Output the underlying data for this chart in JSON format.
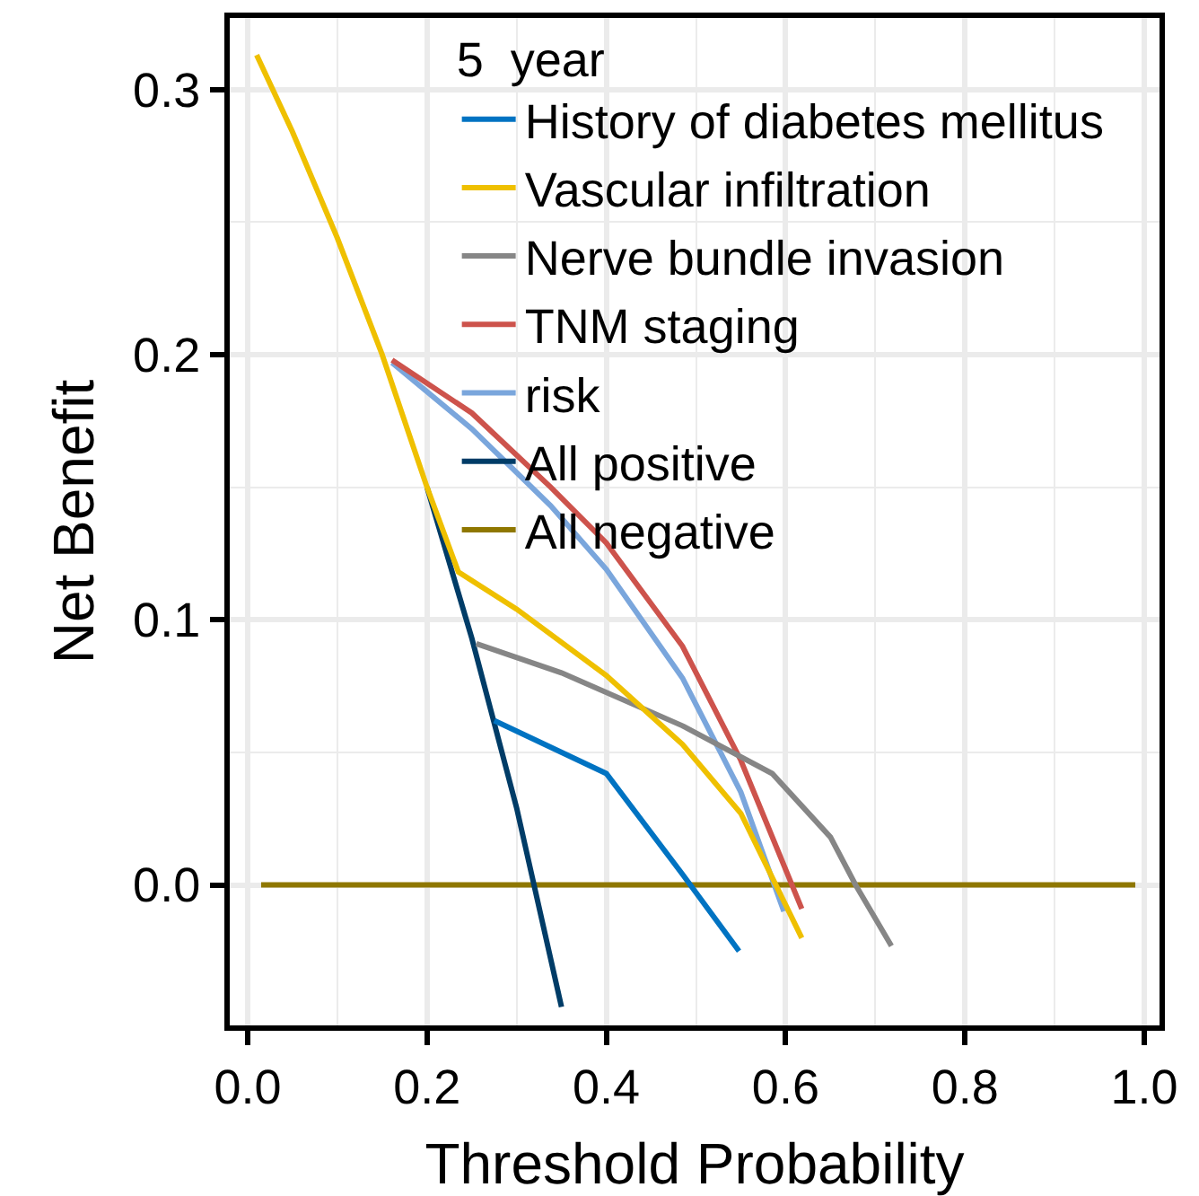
{
  "chart_data": {
    "type": "line",
    "xlabel": "Threshold Probability",
    "ylabel": "Net Benefit",
    "legend_title": "5  year",
    "xlim": [
      -0.02,
      1.017
    ],
    "ylim": [
      -0.053,
      0.327
    ],
    "xticks": [
      {
        "value": 0,
        "label": "0.0"
      },
      {
        "value": 0.2,
        "label": "0.2"
      },
      {
        "value": 0.4,
        "label": "0.4"
      },
      {
        "value": 0.6,
        "label": "0.6"
      },
      {
        "value": 0.8,
        "label": "0.8"
      },
      {
        "value": 1,
        "label": "1.0"
      }
    ],
    "yticks": [
      {
        "value": 0,
        "label": "0.0"
      },
      {
        "value": 0.1,
        "label": "0.1"
      },
      {
        "value": 0.2,
        "label": "0.2"
      },
      {
        "value": 0.3,
        "label": "0.3"
      }
    ],
    "grid": true,
    "legend": "top",
    "marker": "none",
    "line_style": "solid",
    "series": [
      {
        "name": "History of diabetes mellitus",
        "color": "#0073c2",
        "x": [
          0.275,
          0.4,
          0.485,
          0.548
        ],
        "values": [
          0.062,
          0.042,
          0.004,
          -0.025
        ]
      },
      {
        "name": "Vascular infiltration",
        "color": "#efc000",
        "x": [
          0.01,
          0.05,
          0.1,
          0.15,
          0.2,
          0.235,
          0.3,
          0.4,
          0.485,
          0.55,
          0.618
        ],
        "values": [
          0.313,
          0.284,
          0.244,
          0.2,
          0.15,
          0.118,
          0.104,
          0.079,
          0.053,
          0.027,
          -0.02
        ]
      },
      {
        "name": "Nerve bundle invasion",
        "color": "#868686",
        "x": [
          0.255,
          0.35,
          0.485,
          0.585,
          0.65,
          0.678,
          0.718
        ],
        "values": [
          0.091,
          0.08,
          0.06,
          0.042,
          0.018,
          0,
          -0.023
        ]
      },
      {
        "name": "TNM staging",
        "color": "#cd534c",
        "x": [
          0.161,
          0.25,
          0.338,
          0.4,
          0.485,
          0.55,
          0.618
        ],
        "values": [
          0.198,
          0.178,
          0.15,
          0.129,
          0.09,
          0.047,
          -0.009
        ]
      },
      {
        "name": "risk",
        "color": "#7aa6dc",
        "x": [
          0.161,
          0.25,
          0.338,
          0.4,
          0.485,
          0.55,
          0.598
        ],
        "values": [
          0.197,
          0.172,
          0.143,
          0.119,
          0.078,
          0.035,
          -0.01
        ]
      },
      {
        "name": "All positive",
        "color": "#003c67",
        "x": [
          0.2,
          0.25,
          0.3,
          0.35
        ],
        "values": [
          0.15,
          0.093,
          0.029,
          -0.046
        ]
      },
      {
        "name": "All negative",
        "color": "#8f7700",
        "x": [
          0.015,
          0.99
        ],
        "values": [
          0,
          0
        ]
      }
    ]
  }
}
